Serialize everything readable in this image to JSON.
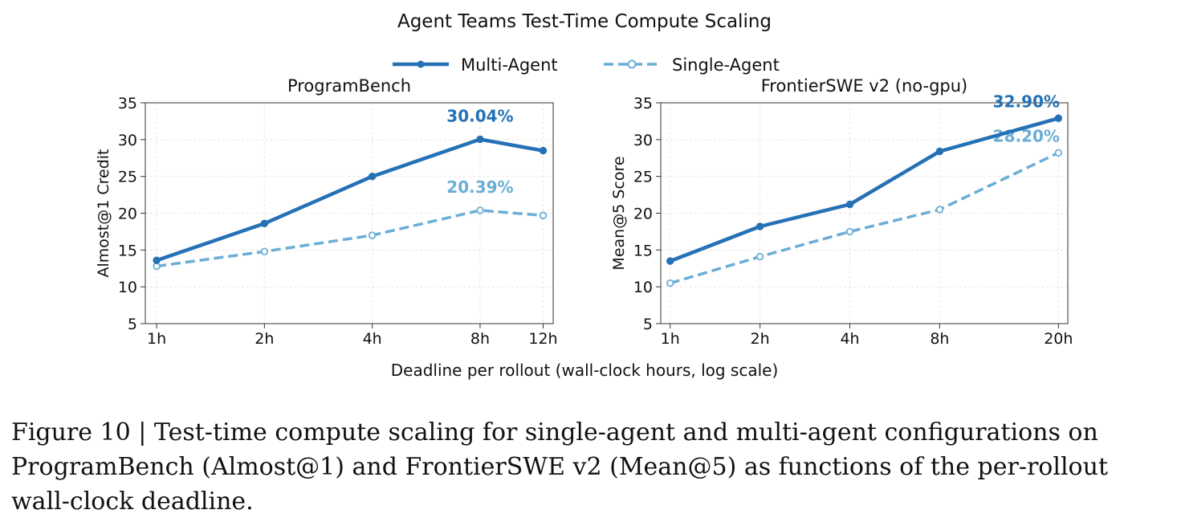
{
  "figure": {
    "title": "Agent Teams Test-Time Compute Scaling",
    "xlabel": "Deadline per rollout (wall-clock hours, log scale)",
    "legend": {
      "placement": "top-center",
      "items": [
        {
          "label": "Multi-Agent",
          "color": "#2471b5",
          "style": "solid",
          "marker": "filled-circle"
        },
        {
          "label": "Single-Agent",
          "color": "#6aaed6",
          "style": "dashed",
          "marker": "open-circle"
        }
      ]
    }
  },
  "chart_data": [
    {
      "type": "line",
      "title": "ProgramBench",
      "ylabel": "Almost@1 Credit",
      "x_scale": "log",
      "x": [
        1,
        2,
        4,
        8,
        12
      ],
      "x_tick_labels": [
        "1h",
        "2h",
        "4h",
        "8h",
        "12h"
      ],
      "xlim": [
        0.93,
        12.8
      ],
      "ylim": [
        5,
        35
      ],
      "y_ticks": [
        5,
        10,
        15,
        20,
        25,
        30,
        35
      ],
      "grid": true,
      "series": [
        {
          "name": "Multi-Agent",
          "color": "#2471b5",
          "values": [
            13.6,
            18.6,
            25.0,
            30.04,
            28.5
          ],
          "annotation": {
            "index": 3,
            "text": "30.04%"
          }
        },
        {
          "name": "Single-Agent",
          "color": "#6aaed6",
          "values": [
            12.8,
            14.8,
            17.0,
            20.39,
            19.7
          ],
          "annotation": {
            "index": 3,
            "text": "20.39%"
          }
        }
      ]
    },
    {
      "type": "line",
      "title": "FrontierSWE v2 (no-gpu)",
      "ylabel": "Mean@5 Score",
      "x_scale": "log",
      "x": [
        1,
        2,
        4,
        8,
        20
      ],
      "x_tick_labels": [
        "1h",
        "2h",
        "4h",
        "8h",
        "20h"
      ],
      "xlim": [
        0.93,
        21.5
      ],
      "ylim": [
        5,
        35
      ],
      "y_ticks": [
        5,
        10,
        15,
        20,
        25,
        30,
        35
      ],
      "grid": true,
      "series": [
        {
          "name": "Multi-Agent",
          "color": "#2471b5",
          "values": [
            13.5,
            18.2,
            21.2,
            28.4,
            32.9
          ],
          "annotation": {
            "index": 4,
            "text": "32.90%"
          }
        },
        {
          "name": "Single-Agent",
          "color": "#6aaed6",
          "values": [
            10.5,
            14.1,
            17.5,
            20.5,
            28.2
          ],
          "annotation": {
            "index": 4,
            "text": "28.20%"
          }
        }
      ]
    }
  ],
  "caption": "Figure 10 | Test-time compute scaling for single-agent and multi-agent configurations on ProgramBench (Almost@1) and FrontierSWE v2 (Mean@5) as functions of the per-rollout wall-clock deadline."
}
